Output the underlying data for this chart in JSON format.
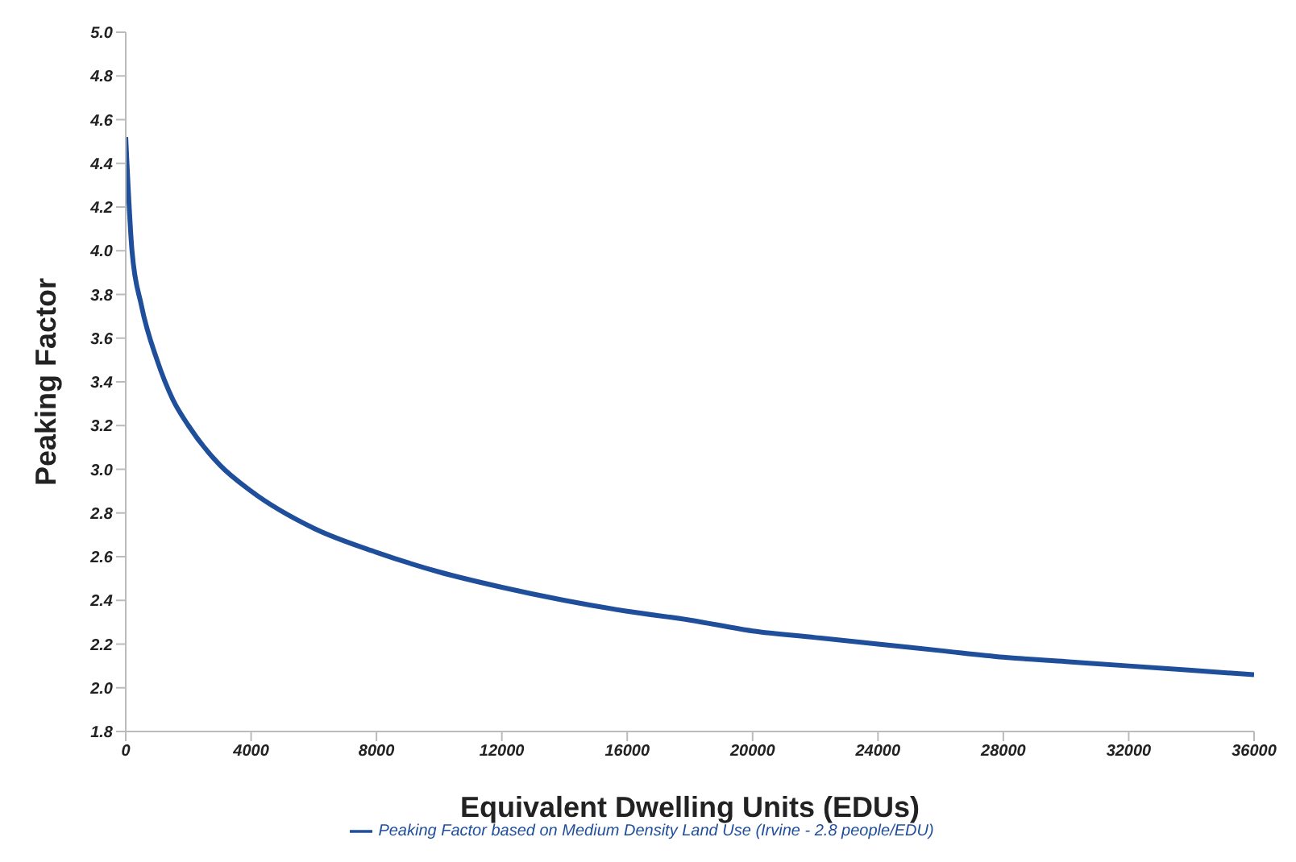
{
  "chart_data": {
    "type": "line",
    "xlabel": "Equivalent Dwelling Units (EDUs)",
    "ylabel": "Peaking Factor",
    "x": [
      0,
      200,
      500,
      1000,
      1500,
      2000,
      3000,
      4000,
      6000,
      8000,
      10000,
      12000,
      14000,
      16000,
      18000,
      20000,
      22000,
      24000,
      26000,
      28000,
      30000,
      32000,
      34000,
      36000
    ],
    "series": [
      {
        "name": "Peaking Factor based on Medium Density Land Use (Irvine - 2.8 people/EDU)",
        "color": "#1f4e9a",
        "values": [
          4.52,
          4.0,
          3.75,
          3.5,
          3.32,
          3.2,
          3.02,
          2.9,
          2.73,
          2.62,
          2.53,
          2.46,
          2.4,
          2.35,
          2.31,
          2.26,
          2.23,
          2.2,
          2.17,
          2.14,
          2.12,
          2.1,
          2.08,
          2.06
        ]
      }
    ],
    "xlim": [
      0,
      36000
    ],
    "xticks": [
      0,
      4000,
      8000,
      12000,
      16000,
      20000,
      24000,
      28000,
      32000,
      36000
    ],
    "ylim": [
      1.8,
      5.0
    ],
    "yticks": [
      {
        "value": 1.8,
        "label": "1.8"
      },
      {
        "value": 2,
        "label": "2.0"
      },
      {
        "value": 2.2,
        "label": "2.2"
      },
      {
        "value": 2.4,
        "label": "2.4"
      },
      {
        "value": 2.6,
        "label": "2.6"
      },
      {
        "value": 2.8,
        "label": "2.8"
      },
      {
        "value": 3,
        "label": "3.0"
      },
      {
        "value": 3.2,
        "label": "3.2"
      },
      {
        "value": 3.4,
        "label": "3.4"
      },
      {
        "value": 3.6,
        "label": "3.6"
      },
      {
        "value": 3.8,
        "label": "3.8"
      },
      {
        "value": 4,
        "label": "4.0"
      },
      {
        "value": 4.2,
        "label": "4.2"
      },
      {
        "value": 4.4,
        "label": "4.4"
      },
      {
        "value": 4.6,
        "label": "4.6"
      },
      {
        "value": 4.8,
        "label": "4.8"
      },
      {
        "value": 5,
        "label": "5.0"
      }
    ],
    "grid": false,
    "legend": "bottom",
    "marker": "none",
    "line_style": "solid"
  }
}
